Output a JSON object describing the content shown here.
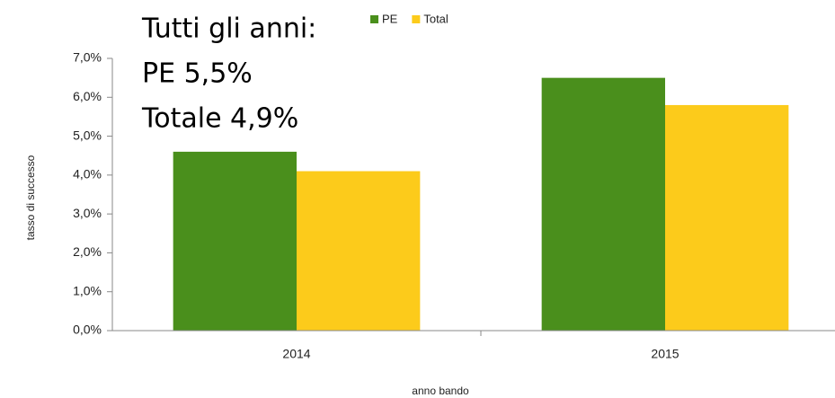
{
  "chart_data": {
    "type": "bar",
    "annotations": [
      "Tutti gli anni:",
      "PE 5,5%",
      "Totale 4,9%"
    ],
    "x_label": "anno bando",
    "y_label": "tasso di successo",
    "categories": [
      "2014",
      "2015"
    ],
    "series": [
      {
        "name": "PE",
        "color": "#4a8f1c",
        "values": [
          4.6,
          6.5
        ]
      },
      {
        "name": "Total",
        "color": "#fccb1b",
        "values": [
          4.1,
          5.8
        ]
      }
    ],
    "ylim": [
      0,
      7
    ],
    "yticks": [
      {
        "value": 0,
        "label": "0,0%"
      },
      {
        "value": 1,
        "label": "1,0%"
      },
      {
        "value": 2,
        "label": "2,0%"
      },
      {
        "value": 3,
        "label": "3,0%"
      },
      {
        "value": 4,
        "label": "4,0%"
      },
      {
        "value": 5,
        "label": "5,0%"
      },
      {
        "value": 6,
        "label": "6,0%"
      },
      {
        "value": 7,
        "label": "7,0%"
      }
    ],
    "grid": false,
    "legend": "top"
  }
}
